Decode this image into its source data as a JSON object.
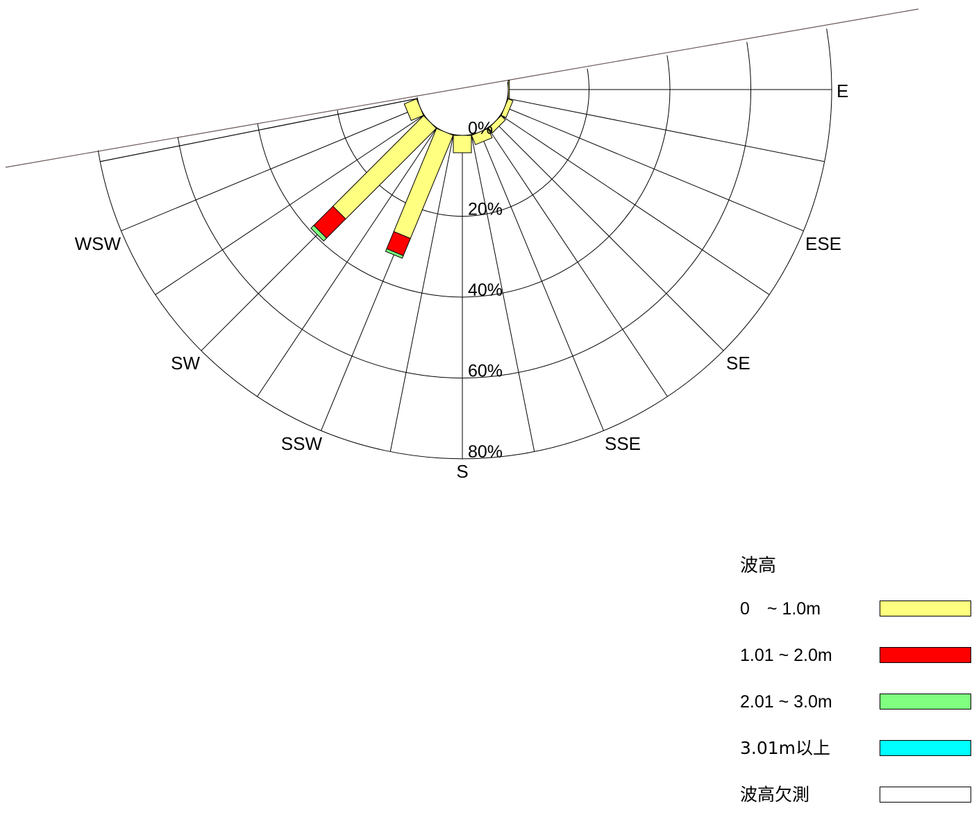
{
  "chart_data": {
    "type": "wind-rose",
    "directions": [
      "E",
      "ESE",
      "SE",
      "SSE",
      "S",
      "SSW",
      "SW",
      "WSW"
    ],
    "radial_ticks": [
      "0%",
      "20%",
      "40%",
      "60%",
      "80%"
    ],
    "rmax": 80,
    "legend_title": "波高",
    "legend": [
      {
        "label": "0　~ 1.0m",
        "color": "#FFFF80"
      },
      {
        "label": "1.01 ~ 2.0m",
        "color": "#FF0000"
      },
      {
        "label": "2.01 ~ 3.0m",
        "color": "#80FF80"
      },
      {
        "label": "3.01m以上",
        "color": "#00FFFF"
      },
      {
        "label": "波高欠測",
        "color": "#FFFFFF"
      }
    ],
    "sector_bars": [
      {
        "direction": "E",
        "segments": [
          0.3,
          0,
          0,
          0
        ]
      },
      {
        "direction": "ESE",
        "segments": [
          1.3,
          0,
          0,
          0
        ]
      },
      {
        "direction": "SE",
        "segments": [
          1.5,
          0,
          0,
          0
        ]
      },
      {
        "direction": "SSE",
        "segments": [
          2.5,
          0,
          0,
          0
        ]
      },
      {
        "direction": "S",
        "segments": [
          4.3,
          0,
          0,
          0
        ]
      },
      {
        "direction": "SSW",
        "segments": [
          27.6,
          4.6,
          0.7,
          0
        ]
      },
      {
        "direction": "SW",
        "segments": [
          31.7,
          6.7,
          1.0,
          0
        ]
      },
      {
        "direction": "WSW",
        "segments": [
          3.3,
          0,
          0,
          0
        ]
      }
    ]
  }
}
